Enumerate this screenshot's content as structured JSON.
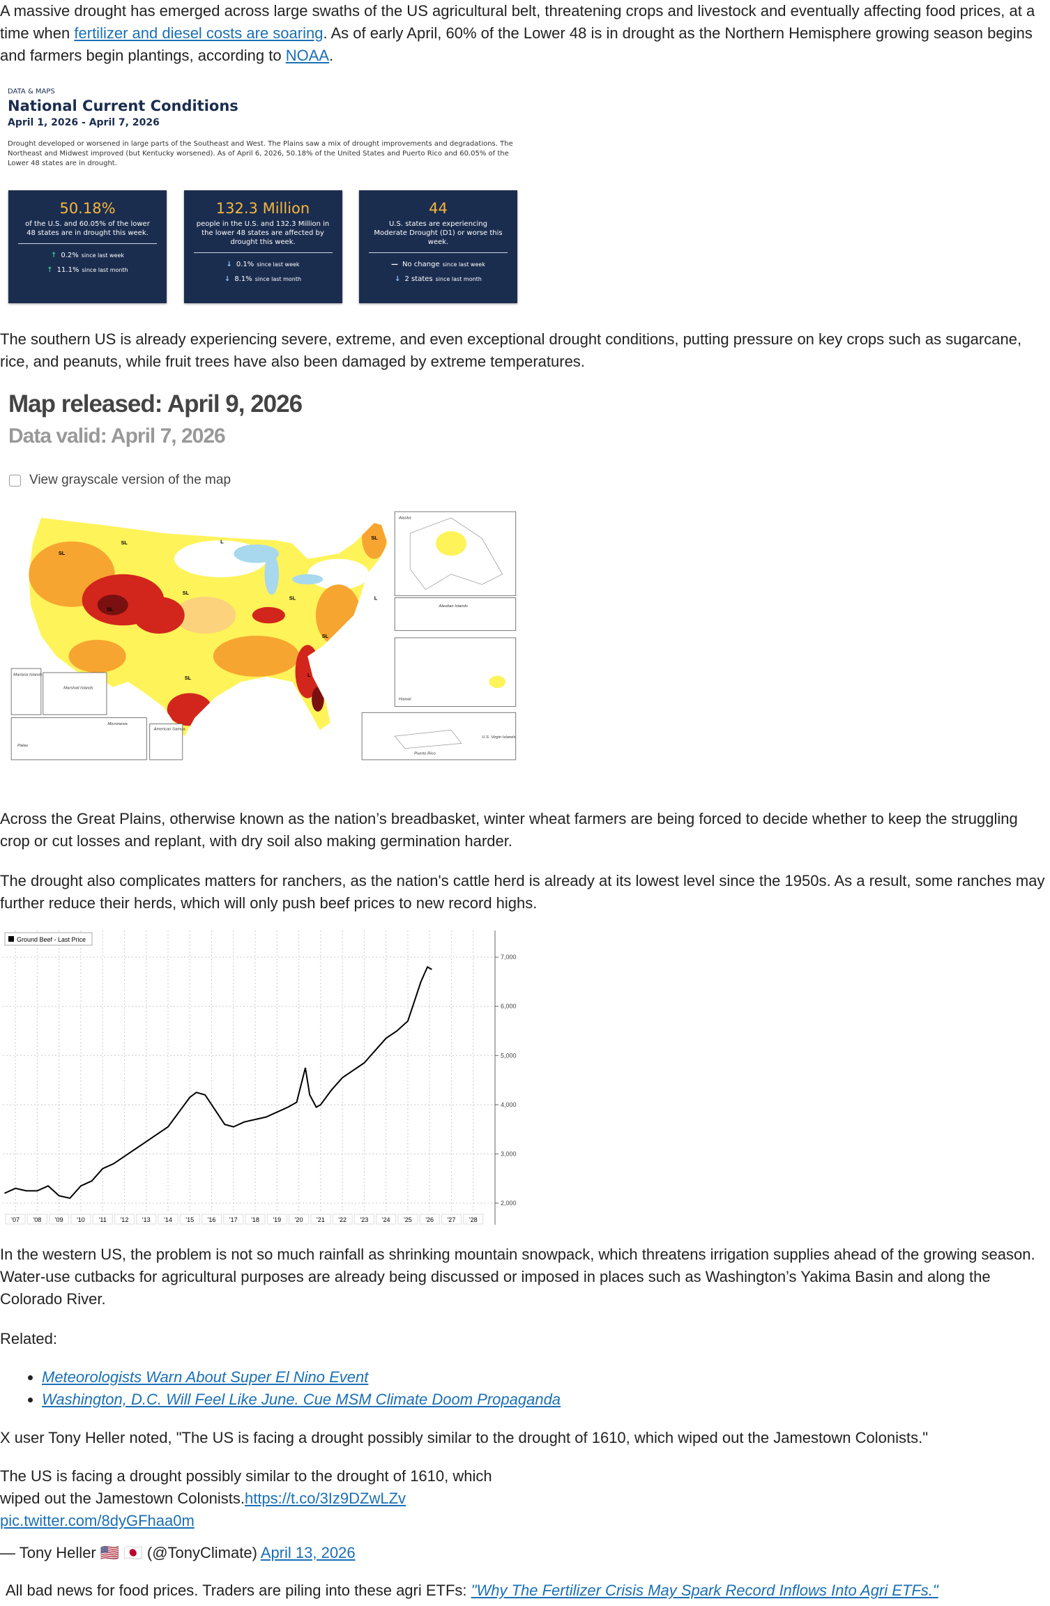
{
  "body": [
    [
      "A massive drought has emerged across large swaths of the US agricultural belt, threatening crops and livestock and eventually affecting food prices, at a time when ",
      {
        "link": "fertilizer and diesel costs are soaring"
      },
      ". As of early April, 60% of the Lower 48 is in drought as the Northern Hemisphere growing season begins and farmers begin plantings, according to ",
      {
        "link": "NOAA"
      },
      "."
    ],
    [
      "The southern US is already experiencing severe, extreme, and even exceptional drought conditions, putting pressure on key crops such as sugarcane, rice, and peanuts, while fruit trees have also been damaged by extreme temperatures."
    ],
    [
      "Across the Great Plains, otherwise known as the nation’s breadbasket, winter wheat farmers are being forced to decide whether to keep the struggling crop or cut losses and replant, with dry soil also making germination harder."
    ],
    [
      "The drought also complicates matters for ranchers, as the nation's cattle herd is already at its lowest level since the 1950s. As a result, some ranches may further reduce their herds, which will only push beef prices to new record highs."
    ],
    [
      "In the western US, the problem is not so much rainfall as shrinking mountain snowpack, which threatens irrigation supplies ahead of the growing season. Water-use cutbacks for agricultural purposes are already being discussed or imposed in places such as Washington’s Yakima Basin and along the Colorado River."
    ],
    [
      "Related:"
    ],
    [
      "X user Tony Heller noted, \"The US is facing a drought possibly similar to the drought of 1610, which wiped out the Jamestown Colonists.\""
    ],
    [
      "The US is facing a drought possibly similar to the drought of 1610, which wiped out the Jamestown Colonists.",
      {
        "link": "https://t.co/3Iz9DZwLZv"
      },
      " ",
      {
        "link": "pic.twitter.com/8dyGFhaa0m"
      }
    ],
    [
      "— Tony Heller 🇺🇸 🇯🇵 (@TonyClimate) ",
      {
        "link": "April 13, 2026"
      }
    ],
    [
      "All bad news for food prices. Traders are piling into these agri ETFs: ",
      {
        "link": "\"Why The Fertilizer Crisis May Spark Record Inflows Into Agri ETFs.\""
      }
    ]
  ],
  "related": [
    "Meteorologists Warn About Super El Nino Event",
    "Washington, D.C. Will Feel Like June. Cue MSM Climate Doom Propaganda"
  ],
  "drought_card": {
    "kicker": "DATA & MAPS",
    "title": "National Current Conditions",
    "dates": "April 1, 2026 - April 7, 2026",
    "summary": "Drought developed or worsened in large parts of the Southeast and West. The Plains saw a mix of drought improvements and degradations. The Northeast and Midwest improved (but Kentucky worsened). As of April 6, 2026, 50.18% of the United States and Puerto Rico and 60.05% of the Lower 48 states are in drought.",
    "stats": [
      {
        "value": "50.18%",
        "desc": "of the U.S. and 60.05% of the lower 48 states are in drought this week.",
        "changes": [
          {
            "dir": "up",
            "amount": "0.2%",
            "period": "since last week"
          },
          {
            "dir": "up",
            "amount": "11.1%",
            "period": "since last month"
          }
        ]
      },
      {
        "value": "132.3 Million",
        "desc": "people in the U.S. and 132.3 Million in the lower 48 states are affected by drought this week.",
        "changes": [
          {
            "dir": "down",
            "amount": "0.1%",
            "period": "since last week"
          },
          {
            "dir": "down",
            "amount": "8.1%",
            "period": "since last month"
          }
        ]
      },
      {
        "value": "44",
        "desc": "U.S. states are experiencing Moderate Drought (D1) or worse this week.",
        "changes": [
          {
            "dir": "none",
            "amount": "No change",
            "period": "since last week"
          },
          {
            "dir": "down",
            "amount": "2 states",
            "period": "since last month"
          }
        ]
      }
    ]
  },
  "drought_map": {
    "released": "Map released: April 9, 2026",
    "valid": "Data valid: April 7, 2026",
    "checkbox": "View grayscale version of the map",
    "impact_labels": [
      "SL",
      "SL",
      "SL",
      "SL",
      "SL",
      "SL",
      "SL",
      "SL",
      "L",
      "L",
      "L"
    ],
    "insets": [
      "Alaska",
      "Aleutian Islands",
      "Hawaii",
      "Puerto Rico",
      "U.S. Virgin Islands",
      "Mariana Islands",
      "Marshall Islands",
      "Micronesia",
      "Palau",
      "American Samoa"
    ]
  },
  "chart_data": {
    "type": "line",
    "grid": true,
    "x": [
      2006.5,
      2007,
      2007.5,
      2008,
      2008.5,
      2009,
      2009.5,
      2009.8,
      2010,
      2010.5,
      2011,
      2011.5,
      2012,
      2012.5,
      2013,
      2013.5,
      2014,
      2014.5,
      2015,
      2015.3,
      2015.7,
      2016,
      2016.3,
      2016.6,
      2017,
      2017.5,
      2018,
      2018.5,
      2019,
      2019.5,
      2019.9,
      2020.3,
      2020.5,
      2020.8,
      2021,
      2021.5,
      2022,
      2022.5,
      2023,
      2023.5,
      2024,
      2024.5,
      2025,
      2025.3,
      2025.6,
      2025.9,
      2026.1
    ],
    "series": [
      {
        "name": "Ground Beef - Last Price",
        "color": "#000000",
        "values": [
          2200,
          2300,
          2250,
          2250,
          2350,
          2150,
          2100,
          2250,
          2350,
          2450,
          2700,
          2800,
          2950,
          3100,
          3250,
          3400,
          3550,
          3850,
          4150,
          4250,
          4200,
          4000,
          3800,
          3600,
          3550,
          3650,
          3700,
          3750,
          3850,
          3950,
          4050,
          4750,
          4200,
          3950,
          4000,
          4300,
          4550,
          4700,
          4850,
          5100,
          5350,
          5500,
          5700,
          6100,
          6500,
          6800,
          6750
        ]
      }
    ],
    "xlim": [
      2006.42,
      2029
    ],
    "ylim": [
      1830,
      7540
    ],
    "xticks": [
      {
        "value": 2007,
        "label": "'07"
      },
      {
        "value": 2008,
        "label": "'08"
      },
      {
        "value": 2009,
        "label": "'09"
      },
      {
        "value": 2010,
        "label": "'10"
      },
      {
        "value": 2011,
        "label": "'11"
      },
      {
        "value": 2012,
        "label": "'12"
      },
      {
        "value": 2013,
        "label": "'13"
      },
      {
        "value": 2014,
        "label": "'14"
      },
      {
        "value": 2015,
        "label": "'15"
      },
      {
        "value": 2016,
        "label": "'16"
      },
      {
        "value": 2017,
        "label": "'17"
      },
      {
        "value": 2018,
        "label": "'18"
      },
      {
        "value": 2019,
        "label": "'19"
      },
      {
        "value": 2020,
        "label": "'20"
      },
      {
        "value": 2021,
        "label": "'21"
      },
      {
        "value": 2022,
        "label": "'22"
      },
      {
        "value": 2023,
        "label": "'23"
      },
      {
        "value": 2024,
        "label": "'24"
      },
      {
        "value": 2025,
        "label": "'25"
      },
      {
        "value": 2026,
        "label": "'26"
      },
      {
        "value": 2027,
        "label": "'27"
      },
      {
        "value": 2028,
        "label": "'28"
      }
    ],
    "yticks": [
      {
        "value": 2000,
        "label": "2,000"
      },
      {
        "value": 3000,
        "label": "3,000"
      },
      {
        "value": 4000,
        "label": "4,000"
      },
      {
        "value": 5000,
        "label": "5,000"
      },
      {
        "value": 6000,
        "label": "6,000"
      },
      {
        "value": 7000,
        "label": "7,000"
      }
    ]
  }
}
